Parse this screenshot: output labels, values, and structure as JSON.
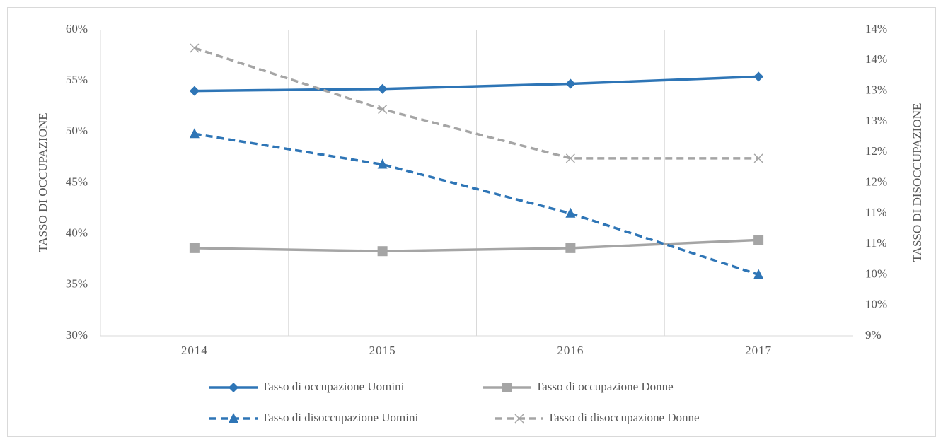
{
  "chart_data": {
    "type": "line",
    "categories": [
      "2014",
      "2015",
      "2016",
      "2017"
    ],
    "ylabel": "TASSO DI OCCUPAZIONE",
    "y2label": "TASSO DI DISOCCUPAZIONE",
    "ylim": [
      30,
      60
    ],
    "yticks": [
      {
        "value": 30,
        "label": "30%"
      },
      {
        "value": 35,
        "label": "35%"
      },
      {
        "value": 40,
        "label": "40%"
      },
      {
        "value": 45,
        "label": "45%"
      },
      {
        "value": 50,
        "label": "50%"
      },
      {
        "value": 55,
        "label": "55%"
      },
      {
        "value": 60,
        "label": "60%"
      }
    ],
    "y2lim": [
      9,
      14
    ],
    "y2ticks": [
      {
        "value": 9,
        "label": "9%"
      },
      {
        "value": 9.5,
        "label": "10%"
      },
      {
        "value": 10,
        "label": "10%"
      },
      {
        "value": 10.5,
        "label": "11%"
      },
      {
        "value": 11,
        "label": "11%"
      },
      {
        "value": 11.5,
        "label": "12%"
      },
      {
        "value": 12,
        "label": "12%"
      },
      {
        "value": 12.5,
        "label": "13%"
      },
      {
        "value": 13,
        "label": "13%"
      },
      {
        "value": 13.5,
        "label": "14%"
      },
      {
        "value": 14,
        "label": "14%"
      }
    ],
    "xgrid": true,
    "series": [
      {
        "name": "Tasso di occupazione Uomini",
        "color": "#2e75b6",
        "marker": "diamond",
        "dashed": false,
        "values": [
          54.0,
          54.2,
          54.7,
          55.4
        ]
      },
      {
        "name": "Tasso di occupazione Donne",
        "color": "#a5a5a5",
        "marker": "square",
        "dashed": false,
        "values": [
          38.6,
          38.3,
          38.6,
          39.4
        ]
      },
      {
        "name": "Tasso di disoccupazione Uomini",
        "color": "#2e75b6",
        "marker": "triangle",
        "dashed": true,
        "axis": "y2",
        "values": [
          12.3,
          11.8,
          11.0,
          10.0
        ]
      },
      {
        "name": "Tasso di disoccupazione Donne",
        "color": "#a5a5a5",
        "marker": "x",
        "dashed": true,
        "axis": "y2",
        "values": [
          13.7,
          12.7,
          11.9,
          11.9
        ]
      }
    ]
  }
}
